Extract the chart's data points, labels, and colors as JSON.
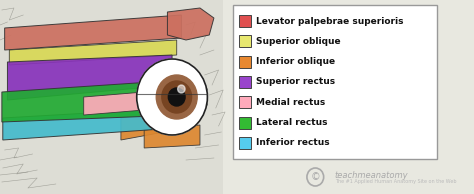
{
  "legend_items": [
    {
      "label": "Levator palpebrae superioris",
      "color": "#e05050"
    },
    {
      "label": "Superior oblique",
      "color": "#e8e870"
    },
    {
      "label": "Inferior oblique",
      "color": "#e88830"
    },
    {
      "label": "Superior rectus",
      "color": "#9944cc"
    },
    {
      "label": "Medial rectus",
      "color": "#ffaabb"
    },
    {
      "label": "Lateral rectus",
      "color": "#33bb33"
    },
    {
      "label": "Inferior rectus",
      "color": "#55ccee"
    }
  ],
  "bg_color": "#e8e8e0",
  "legend_bg": "#ffffff",
  "label_fontsize": 6.5,
  "label_color": "#111111",
  "border_color": "#999999",
  "watermark_color": "#999999"
}
